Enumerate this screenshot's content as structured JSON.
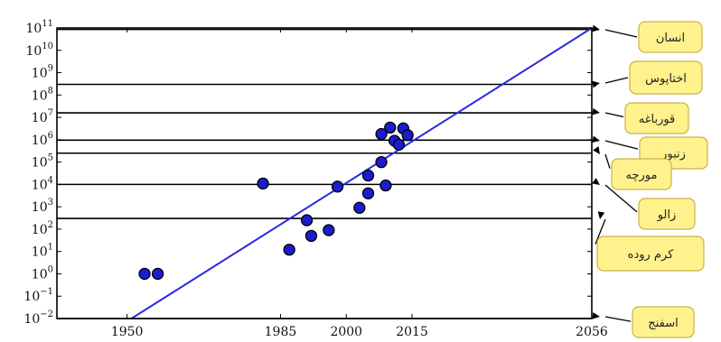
{
  "chart_data": {
    "type": "scatter",
    "x_ticks": [
      1950,
      1985,
      2000,
      2015,
      2056
    ],
    "xlim": [
      1934,
      2056
    ],
    "y_ticks_exp": [
      -2,
      -1,
      0,
      1,
      2,
      3,
      4,
      5,
      6,
      7,
      8,
      9,
      10,
      11
    ],
    "ylim": [
      0.01,
      100000000000
    ],
    "y_scale": "log",
    "grid": false,
    "points": [
      {
        "x": 1954,
        "y": 1
      },
      {
        "x": 1957,
        "y": 1
      },
      {
        "x": 1981,
        "y": 11000
      },
      {
        "x": 1987,
        "y": 12
      },
      {
        "x": 1991,
        "y": 250
      },
      {
        "x": 1992,
        "y": 50
      },
      {
        "x": 1996,
        "y": 90
      },
      {
        "x": 1998,
        "y": 8000
      },
      {
        "x": 2003,
        "y": 900
      },
      {
        "x": 2005,
        "y": 4000
      },
      {
        "x": 2005,
        "y": 25000
      },
      {
        "x": 2008,
        "y": 100000
      },
      {
        "x": 2008,
        "y": 1800000
      },
      {
        "x": 2009,
        "y": 9000
      },
      {
        "x": 2010,
        "y": 3500000
      },
      {
        "x": 2011,
        "y": 900000
      },
      {
        "x": 2012,
        "y": 600000
      },
      {
        "x": 2013,
        "y": 3200000
      },
      {
        "x": 2014,
        "y": 1600000
      }
    ],
    "trend_line": {
      "x": [
        1951,
        2056
      ],
      "y": [
        0.01,
        100000000000
      ]
    },
    "reference_levels": [
      {
        "label": "انسان",
        "y": 86000000000
      },
      {
        "label": "اختاپوس",
        "y": 300000000
      },
      {
        "label": "قورباغه",
        "y": 16000000
      },
      {
        "label": "زنبور",
        "y": 960000
      },
      {
        "label": "مورچه",
        "y": 250000
      },
      {
        "label": "زالو",
        "y": 10000
      },
      {
        "label": "کرم روده",
        "y": 302
      },
      {
        "label": "اسفنج",
        "y": 0.01
      }
    ],
    "colors": {
      "points": "#1c1ccf",
      "trend": "#2a2ae0",
      "levels": "#000000",
      "label_box": "#fff28c",
      "label_border": "#c9b24a"
    }
  }
}
